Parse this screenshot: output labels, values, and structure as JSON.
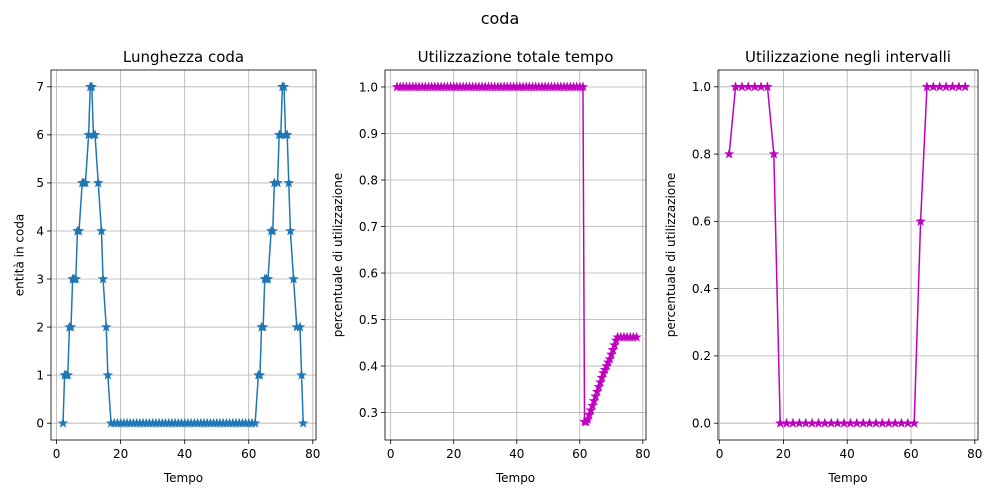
{
  "figure": {
    "suptitle": "coda"
  },
  "colors": {
    "blue": "#1f77b4",
    "magenta": "#bf00bf",
    "grid": "#b0b0b0"
  },
  "chart_data": [
    {
      "type": "line",
      "title": "Lunghezza coda",
      "xlabel": "Tempo",
      "ylabel": "entità in coda",
      "xlim": [
        -1.75,
        81.0
      ],
      "ylim": [
        -0.35,
        7.35
      ],
      "xticks": [
        0,
        20,
        40,
        60,
        80
      ],
      "xtick_labels": [
        "0",
        "20",
        "40",
        "60",
        "80"
      ],
      "yticks": [
        0,
        1,
        2,
        3,
        4,
        5,
        6,
        7
      ],
      "ytick_labels": [
        "0",
        "1",
        "2",
        "3",
        "4",
        "5",
        "6",
        "7"
      ],
      "marker": "star",
      "color": "#1f77b4",
      "x": [
        2,
        2.5,
        3,
        3.5,
        4,
        4.5,
        5,
        5.5,
        6,
        6.5,
        7,
        8,
        8.5,
        9,
        10,
        10.5,
        11,
        11.5,
        12,
        13,
        14,
        14.5,
        15.5,
        16,
        17,
        18,
        19,
        20,
        21,
        22,
        23,
        24,
        25,
        26,
        27,
        28,
        29,
        30,
        31,
        32,
        33,
        34,
        35,
        36,
        37,
        38,
        39,
        40,
        41,
        42,
        43,
        44,
        45,
        46,
        47,
        48,
        49,
        50,
        51,
        52,
        53,
        54,
        55,
        56,
        57,
        58,
        59,
        60,
        61,
        62,
        63,
        63.5,
        64,
        64.5,
        65,
        65.5,
        66,
        67,
        67.5,
        68,
        69,
        69.5,
        70,
        70.5,
        71,
        71.5,
        72,
        72.5,
        73,
        74,
        75,
        76,
        76.5,
        77
      ],
      "y": [
        0,
        1,
        1,
        1,
        2,
        2,
        3,
        3,
        3,
        4,
        4,
        5,
        5,
        5,
        6,
        7,
        7,
        6,
        6,
        5,
        4,
        3,
        2,
        1,
        0,
        0,
        0,
        0,
        0,
        0,
        0,
        0,
        0,
        0,
        0,
        0,
        0,
        0,
        0,
        0,
        0,
        0,
        0,
        0,
        0,
        0,
        0,
        0,
        0,
        0,
        0,
        0,
        0,
        0,
        0,
        0,
        0,
        0,
        0,
        0,
        0,
        0,
        0,
        0,
        0,
        0,
        0,
        0,
        0,
        0,
        1,
        1,
        2,
        2,
        3,
        3,
        3,
        4,
        4,
        5,
        5,
        6,
        6,
        7,
        7,
        6,
        6,
        5,
        4,
        3,
        2,
        2,
        1,
        0
      ]
    },
    {
      "type": "line",
      "title": "Utilizzazione totale tempo",
      "xlabel": "Tempo",
      "ylabel": "percentuale di utilizzazione",
      "xlim": [
        -1.8,
        81.0
      ],
      "ylim": [
        0.241,
        1.0365
      ],
      "xticks": [
        0,
        20,
        40,
        60,
        80
      ],
      "xtick_labels": [
        "0",
        "20",
        "40",
        "60",
        "80"
      ],
      "yticks": [
        0.3,
        0.4,
        0.5,
        0.6,
        0.7,
        0.8,
        0.9,
        1.0
      ],
      "ytick_labels": [
        "0.3",
        "0.4",
        "0.5",
        "0.6",
        "0.7",
        "0.8",
        "0.9",
        "1.0"
      ],
      "marker": "star",
      "color": "#bf00bf",
      "x": [
        2,
        3,
        4,
        5,
        6,
        7,
        8,
        9,
        10,
        11,
        12,
        13,
        14,
        15,
        16,
        17,
        18,
        19,
        20,
        21,
        22,
        23,
        24,
        25,
        26,
        27,
        28,
        29,
        30,
        31,
        32,
        33,
        34,
        35,
        36,
        37,
        38,
        39,
        40,
        41,
        42,
        43,
        44,
        45,
        46,
        47,
        48,
        49,
        50,
        51,
        52,
        53,
        54,
        55,
        56,
        57,
        58,
        59,
        60,
        61,
        61.5,
        62,
        62.5,
        63,
        63.5,
        64,
        64.5,
        65,
        65.5,
        66,
        66.5,
        67,
        67.5,
        68,
        68.5,
        69,
        69.5,
        70,
        70.5,
        71,
        71.5,
        72,
        73,
        74,
        75,
        76,
        77,
        78
      ],
      "y": [
        1.0,
        1.0,
        1.0,
        1.0,
        1.0,
        1.0,
        1.0,
        1.0,
        1.0,
        1.0,
        1.0,
        1.0,
        1.0,
        1.0,
        1.0,
        1.0,
        1.0,
        1.0,
        1.0,
        1.0,
        1.0,
        1.0,
        1.0,
        1.0,
        1.0,
        1.0,
        1.0,
        1.0,
        1.0,
        1.0,
        1.0,
        1.0,
        1.0,
        1.0,
        1.0,
        1.0,
        1.0,
        1.0,
        1.0,
        1.0,
        1.0,
        1.0,
        1.0,
        1.0,
        1.0,
        1.0,
        1.0,
        1.0,
        1.0,
        1.0,
        1.0,
        1.0,
        1.0,
        1.0,
        1.0,
        1.0,
        1.0,
        1.0,
        1.0,
        1.0,
        0.28,
        0.28,
        0.285,
        0.295,
        0.305,
        0.315,
        0.325,
        0.335,
        0.345,
        0.355,
        0.365,
        0.375,
        0.385,
        0.392,
        0.4,
        0.408,
        0.415,
        0.425,
        0.435,
        0.445,
        0.455,
        0.462,
        0.462,
        0.462,
        0.462,
        0.462,
        0.462,
        0.462
      ]
    },
    {
      "type": "line",
      "title": "Utilizzazione negli intervalli",
      "xlabel": "Tempo",
      "ylabel": "percentuale di utilizzazione",
      "xlim": [
        -0.5,
        81.0
      ],
      "ylim": [
        -0.05,
        1.05
      ],
      "xticks": [
        0,
        20,
        40,
        60,
        80
      ],
      "xtick_labels": [
        "0",
        "20",
        "40",
        "60",
        "80"
      ],
      "yticks": [
        0.0,
        0.2,
        0.4,
        0.6,
        0.8,
        1.0
      ],
      "ytick_labels": [
        "0.0",
        "0.2",
        "0.4",
        "0.6",
        "0.8",
        "1.0"
      ],
      "marker": "star",
      "color": "#bf00bf",
      "x": [
        3,
        5,
        7,
        9,
        11,
        13,
        15,
        17,
        19,
        21,
        23,
        25,
        27,
        29,
        31,
        33,
        35,
        37,
        39,
        41,
        43,
        45,
        47,
        49,
        51,
        53,
        55,
        57,
        59,
        61,
        63,
        65,
        67,
        69,
        71,
        73,
        75,
        77
      ],
      "y": [
        0.8,
        1.0,
        1.0,
        1.0,
        1.0,
        1.0,
        1.0,
        0.8,
        0.0,
        0.0,
        0.0,
        0.0,
        0.0,
        0.0,
        0.0,
        0.0,
        0.0,
        0.0,
        0.0,
        0.0,
        0.0,
        0.0,
        0.0,
        0.0,
        0.0,
        0.0,
        0.0,
        0.0,
        0.0,
        0.0,
        0.6,
        1.0,
        1.0,
        1.0,
        1.0,
        1.0,
        1.0,
        1.0
      ]
    }
  ]
}
